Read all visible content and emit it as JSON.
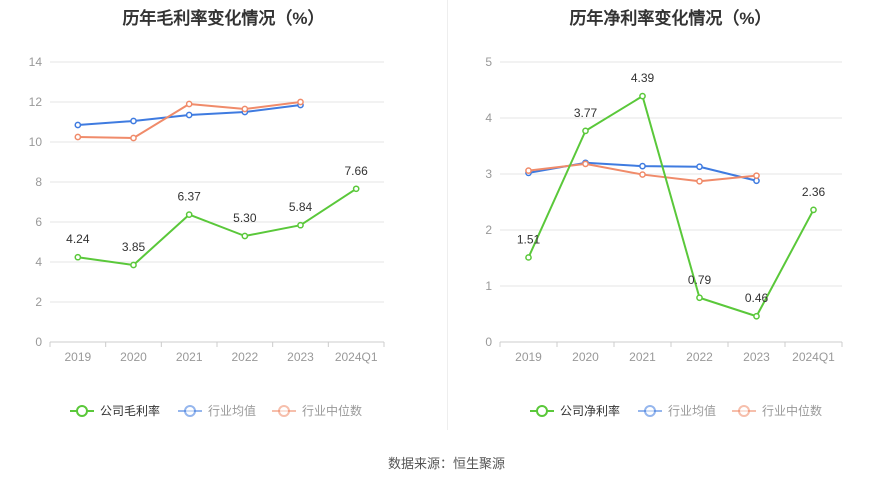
{
  "source": "数据来源：恒生聚源",
  "chart_data": [
    {
      "type": "line",
      "title": "历年毛利率变化情况（%）",
      "categories": [
        "2019",
        "2020",
        "2021",
        "2022",
        "2023",
        "2024Q1"
      ],
      "ylim": [
        0,
        14
      ],
      "yticks": [
        0,
        2,
        4,
        6,
        8,
        10,
        12,
        14
      ],
      "grid": true,
      "legend_position": "bottom",
      "series": [
        {
          "name": "公司毛利率",
          "color": "#5ac83a",
          "values": [
            4.24,
            3.85,
            6.37,
            5.3,
            5.84,
            7.66
          ],
          "labels": [
            "4.24",
            "3.85",
            "6.37",
            "5.30",
            "5.84",
            "7.66"
          ]
        },
        {
          "name": "行业均值",
          "color": "#3f7be0",
          "values": [
            10.85,
            11.05,
            11.35,
            11.5,
            11.85,
            null
          ]
        },
        {
          "name": "行业中位数",
          "color": "#f08b6a",
          "values": [
            10.25,
            10.2,
            11.9,
            11.65,
            12.0,
            null
          ]
        }
      ]
    },
    {
      "type": "line",
      "title": "历年净利率变化情况（%）",
      "categories": [
        "2019",
        "2020",
        "2021",
        "2022",
        "2023",
        "2024Q1"
      ],
      "ylim": [
        0,
        5
      ],
      "yticks": [
        0,
        1,
        2,
        3,
        4,
        5
      ],
      "grid": true,
      "legend_position": "bottom",
      "series": [
        {
          "name": "公司净利率",
          "color": "#5ac83a",
          "values": [
            1.51,
            3.77,
            4.39,
            0.79,
            0.46,
            2.36
          ],
          "labels": [
            "1.51",
            "3.77",
            "4.39",
            "0.79",
            "0.46",
            "2.36"
          ]
        },
        {
          "name": "行业均值",
          "color": "#3f7be0",
          "values": [
            3.02,
            3.2,
            3.14,
            3.13,
            2.88,
            null
          ]
        },
        {
          "name": "行业中位数",
          "color": "#f08b6a",
          "values": [
            3.06,
            3.18,
            2.99,
            2.87,
            2.97,
            null
          ]
        }
      ]
    }
  ]
}
